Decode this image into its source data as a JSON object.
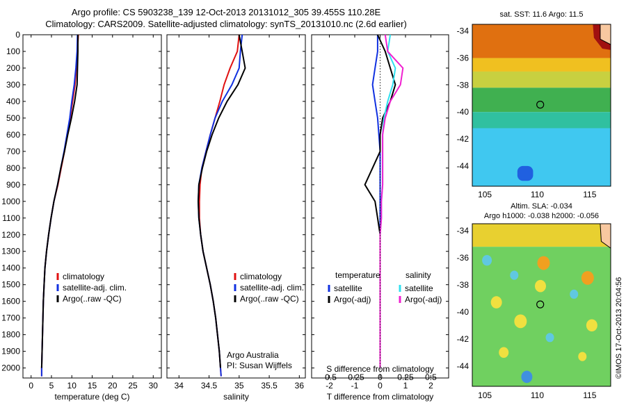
{
  "header": {
    "line1": "Argo profile: CS 5903238_139 12-Oct-2013 20131012_305 39.455S 110.28E",
    "line2": "Climatology: CARS2009. Satellite-adjusted climatology: synTS_20131010.nc (2.6d earlier)"
  },
  "colors": {
    "climatology": "#e01010",
    "satellite": "#1030e0",
    "argo": "#000000",
    "sal_satellite": "#30e0f0",
    "sal_argo": "#f020d0"
  },
  "chart_data": [
    {
      "type": "line",
      "xlabel": "temperature (deg C)",
      "ylabel": "",
      "xlim": [
        -2,
        32
      ],
      "ylim": [
        2060,
        0
      ],
      "xticks": [
        0,
        5,
        10,
        15,
        20,
        25,
        30
      ],
      "yticks": [
        0,
        100,
        200,
        300,
        400,
        500,
        600,
        700,
        800,
        900,
        1000,
        1100,
        1200,
        1300,
        1400,
        1500,
        1600,
        1700,
        1800,
        1900,
        2000
      ],
      "legend": [
        "climatology",
        "satellite-adj. clim.",
        "Argo(..raw -QC)"
      ],
      "series": [
        {
          "name": "climatology",
          "color": "#e01010",
          "x": [
            11.6,
            11.4,
            11.1,
            10.8,
            10.2,
            9.6,
            8.9,
            8.2,
            7.4,
            6.6,
            5.6,
            4.9,
            4.3,
            3.8,
            3.4,
            3.2,
            3.0,
            2.9,
            2.8,
            2.7,
            2.6,
            2.6
          ],
          "y": [
            0,
            100,
            200,
            300,
            400,
            500,
            600,
            700,
            800,
            900,
            1000,
            1100,
            1200,
            1300,
            1400,
            1500,
            1600,
            1700,
            1800,
            1900,
            2000,
            2050
          ]
        },
        {
          "name": "satellite-adj. clim.",
          "color": "#1030e0",
          "x": [
            11.4,
            11.3,
            11.0,
            10.6,
            10.0,
            9.5,
            8.8,
            8.1,
            7.3,
            6.5,
            5.6,
            4.9,
            4.3,
            3.8,
            3.4,
            3.2,
            3.0,
            2.9,
            2.8,
            2.7,
            2.6,
            2.6
          ],
          "y": [
            0,
            100,
            200,
            300,
            400,
            500,
            600,
            700,
            800,
            900,
            1000,
            1100,
            1200,
            1300,
            1400,
            1500,
            1600,
            1700,
            1800,
            1900,
            2000,
            2050
          ]
        },
        {
          "name": "Argo(..raw -QC)",
          "color": "#000000",
          "x": [
            11.5,
            11.5,
            11.4,
            11.3,
            10.7,
            9.9,
            9.0,
            8.2,
            7.3,
            6.5,
            5.6,
            4.9,
            4.3,
            3.8,
            3.4,
            3.2,
            3.0,
            2.9,
            2.8,
            2.7,
            2.6
          ],
          "y": [
            0,
            100,
            200,
            300,
            400,
            500,
            600,
            700,
            800,
            900,
            1000,
            1100,
            1200,
            1300,
            1400,
            1500,
            1600,
            1700,
            1800,
            1900,
            2000
          ]
        }
      ]
    },
    {
      "type": "line",
      "xlabel": "salinity",
      "xlim": [
        33.8,
        36.1
      ],
      "ylim": [
        2060,
        0
      ],
      "xticks": [
        34,
        34.5,
        35,
        35.5,
        36
      ],
      "legend": [
        "climatology",
        "satellite-adj. clim.",
        "Argo(..raw -QC)"
      ],
      "annotation": [
        "Argo Australia",
        "PI: Susan Wijffels"
      ],
      "series": [
        {
          "name": "climatology",
          "color": "#e01010",
          "x": [
            35.0,
            34.97,
            34.85,
            34.75,
            34.68,
            34.6,
            34.52,
            34.45,
            34.38,
            34.35,
            34.34,
            34.34,
            34.36,
            34.4,
            34.46,
            34.52,
            34.57,
            34.61,
            34.64,
            34.67,
            34.69,
            34.7
          ],
          "y": [
            0,
            100,
            200,
            300,
            400,
            500,
            600,
            700,
            800,
            900,
            1000,
            1100,
            1200,
            1300,
            1400,
            1500,
            1600,
            1700,
            1800,
            1900,
            2000,
            2050
          ]
        },
        {
          "name": "satellite-adj. clim.",
          "color": "#1030e0",
          "x": [
            35.05,
            35.02,
            35.0,
            34.88,
            34.72,
            34.6,
            34.52,
            34.45,
            34.38,
            34.33,
            34.32,
            34.33,
            34.36,
            34.4,
            34.46,
            34.52,
            34.57,
            34.61,
            34.64,
            34.67,
            34.69,
            34.7
          ],
          "y": [
            0,
            100,
            200,
            300,
            400,
            500,
            600,
            700,
            800,
            900,
            1000,
            1100,
            1200,
            1300,
            1400,
            1500,
            1600,
            1700,
            1800,
            1900,
            2000,
            2050
          ]
        },
        {
          "name": "Argo(..raw -QC)",
          "color": "#000000",
          "x": [
            35.0,
            35.05,
            35.1,
            34.98,
            34.8,
            34.66,
            34.55,
            34.46,
            34.39,
            34.33,
            34.32,
            34.33,
            34.36,
            34.4,
            34.46,
            34.52,
            34.57,
            34.61,
            34.64,
            34.67,
            34.69
          ],
          "y": [
            0,
            100,
            200,
            300,
            400,
            500,
            600,
            700,
            800,
            900,
            1000,
            1100,
            1200,
            1300,
            1400,
            1500,
            1600,
            1700,
            1800,
            1900,
            2000
          ]
        }
      ]
    },
    {
      "type": "line",
      "xlabel": "T difference from climatology",
      "top_axis_label": "S difference from climatology",
      "xlim": [
        -2.7,
        2.7
      ],
      "ylim": [
        2060,
        0
      ],
      "xticks": [
        -2,
        -1,
        0,
        1,
        2
      ],
      "top_ticks": [
        {
          "value": -2,
          "label": "-0.5"
        },
        {
          "value": -1,
          "label": "-0.25"
        },
        {
          "value": 0,
          "label": "0"
        },
        {
          "value": 1,
          "label": "0.25"
        },
        {
          "value": 2,
          "label": "0.5"
        }
      ],
      "legend_temperature": {
        "title": "temperature",
        "items": [
          "satellite",
          "Argo(-adj)"
        ]
      },
      "legend_salinity": {
        "title": "salinity",
        "items": [
          "satellite",
          "Argo(-adj)"
        ]
      },
      "series": [
        {
          "name": "temperature satellite",
          "color": "#1030e0",
          "x": [
            -0.1,
            -0.1,
            -0.2,
            -0.3,
            -0.2,
            -0.1,
            -0.05,
            0,
            0,
            0,
            0,
            0,
            0,
            0,
            0,
            0,
            0,
            0,
            0,
            0,
            0
          ],
          "y": [
            0,
            100,
            200,
            300,
            400,
            500,
            600,
            700,
            800,
            900,
            1000,
            1100,
            1200,
            1300,
            1400,
            1500,
            1600,
            1700,
            1800,
            1900,
            2000
          ]
        },
        {
          "name": "temperature Argo(-adj)",
          "color": "#000000",
          "x": [
            -0.1,
            0.2,
            0.4,
            0.6,
            0.4,
            0.1,
            0,
            0,
            -0.3,
            -0.6,
            -0.2,
            -0.1,
            0,
            0,
            0,
            0,
            0,
            0,
            0,
            0,
            0
          ],
          "y": [
            0,
            100,
            200,
            300,
            400,
            500,
            600,
            700,
            800,
            900,
            1000,
            1100,
            1200,
            1300,
            1400,
            1500,
            1600,
            1700,
            1800,
            1900,
            2000
          ]
        },
        {
          "name": "salinity satellite",
          "color": "#30e0f0",
          "x": [
            0.4,
            0.3,
            0.6,
            0.5,
            0.3,
            0.15,
            0.1,
            0.1,
            0.1,
            0.1,
            0.05,
            0.05,
            0,
            0,
            0,
            0,
            0,
            0,
            0,
            0,
            0
          ],
          "y": [
            0,
            100,
            200,
            300,
            400,
            500,
            600,
            700,
            800,
            900,
            1000,
            1100,
            1200,
            1300,
            1400,
            1500,
            1600,
            1700,
            1800,
            1900,
            2000
          ]
        },
        {
          "name": "salinity Argo(-adj)",
          "color": "#f020d0",
          "x": [
            0.2,
            0.3,
            0.9,
            0.8,
            0.4,
            0.2,
            0.1,
            0.1,
            0.1,
            0.1,
            0.05,
            0.05,
            0,
            0,
            0,
            0,
            0,
            0,
            0,
            0,
            0
          ],
          "y": [
            0,
            100,
            200,
            300,
            400,
            500,
            600,
            700,
            800,
            900,
            1000,
            1100,
            1200,
            1300,
            1400,
            1500,
            1600,
            1700,
            1800,
            1900,
            2000
          ]
        }
      ]
    }
  ],
  "maps": {
    "sst": {
      "title": "sat. SST: 11.6 Argo: 11.5",
      "yticks": [
        -34,
        -36,
        -38,
        -40,
        -42,
        -44
      ],
      "xticks": [
        105,
        110,
        115
      ],
      "marker": {
        "lon": 110.28,
        "lat": -39.455
      }
    },
    "sla": {
      "title1": "Altim. SLA: -0.034",
      "title2": "Argo h1000: -0.038 h2000: -0.056",
      "yticks": [
        -34,
        -36,
        -38,
        -40,
        -42,
        -44
      ],
      "xticks": [
        105,
        110,
        115
      ],
      "marker": {
        "lon": 110.28,
        "lat": -39.455
      }
    }
  },
  "footer_stamp": "©IMOS 17-Oct-2013 20:04:56"
}
